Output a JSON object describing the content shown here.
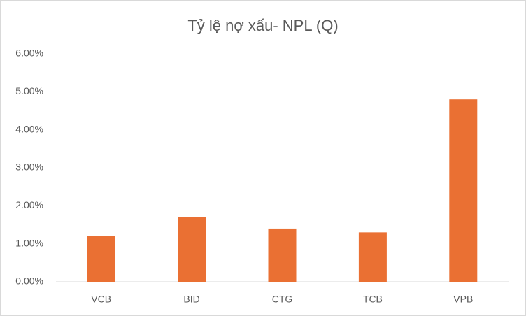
{
  "chart_data": {
    "type": "bar",
    "title": "Tỷ lệ nợ xấu- NPL (Q)",
    "categories": [
      "VCB",
      "BID",
      "CTG",
      "TCB",
      "VPB"
    ],
    "values": [
      1.2,
      1.7,
      1.4,
      1.3,
      4.8
    ],
    "color": "#ea7033",
    "ylim": [
      0,
      6
    ],
    "yticks": [
      {
        "value": 0,
        "label": "0.00%"
      },
      {
        "value": 1,
        "label": "1.00%"
      },
      {
        "value": 2,
        "label": "2.00%"
      },
      {
        "value": 3,
        "label": "3.00%"
      },
      {
        "value": 4,
        "label": "4.00%"
      },
      {
        "value": 5,
        "label": "5.00%"
      },
      {
        "value": 6,
        "label": "6.00%"
      }
    ],
    "grid": false
  }
}
